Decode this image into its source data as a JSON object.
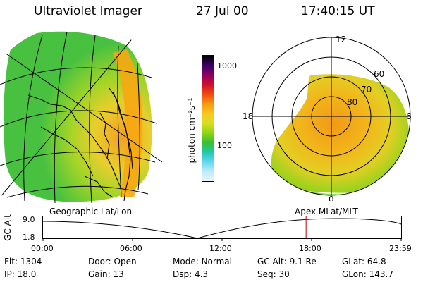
{
  "header": {
    "title": "Ultraviolet Imager",
    "date": "27 Jul 00",
    "time": "17:40:15 UT"
  },
  "left_panel": {
    "label": "Geographic Lat/Lon"
  },
  "right_panel": {
    "label": "Apex MLat/MLT",
    "mlt_labels": [
      "12",
      "18",
      "6",
      "0"
    ],
    "lat_labels": [
      "60",
      "70",
      "80"
    ]
  },
  "colorbar": {
    "axis_label": "photon cm⁻²s⁻¹",
    "ticks": [
      "1000",
      "100"
    ],
    "colors": [
      "#000000",
      "#3a006a",
      "#8a0060",
      "#d0102a",
      "#f04a10",
      "#f79a10",
      "#f7c820",
      "#d8e020",
      "#8ed418",
      "#38c030",
      "#20c8b0",
      "#60d8ee",
      "#c0eaf8",
      "#e8f4fa"
    ]
  },
  "altitude_strip": {
    "ylabel": "GC Alt",
    "ymax": "9.0",
    "ymin": "1.8",
    "ticks": [
      "00:00",
      "06:00",
      "12:00",
      "18:00",
      "23:59"
    ],
    "marker_fraction": 0.7346
  },
  "status": {
    "row1": [
      {
        "key": "Flt:",
        "value": "1304"
      },
      {
        "key": "Door:",
        "value": "Open"
      },
      {
        "key": "Mode:",
        "value": "Normal"
      },
      {
        "key": "GC Alt:",
        "value": "9.1 Re"
      },
      {
        "key": "GLat:",
        "value": "64.8"
      }
    ],
    "row2": [
      {
        "key": "IP:",
        "value": "18.0"
      },
      {
        "key": "Gain:",
        "value": "13"
      },
      {
        "key": "Dsp:",
        "value": "4.3"
      },
      {
        "key": "Seq:",
        "value": "30"
      },
      {
        "key": "GLon:",
        "value": "143.7"
      }
    ]
  }
}
